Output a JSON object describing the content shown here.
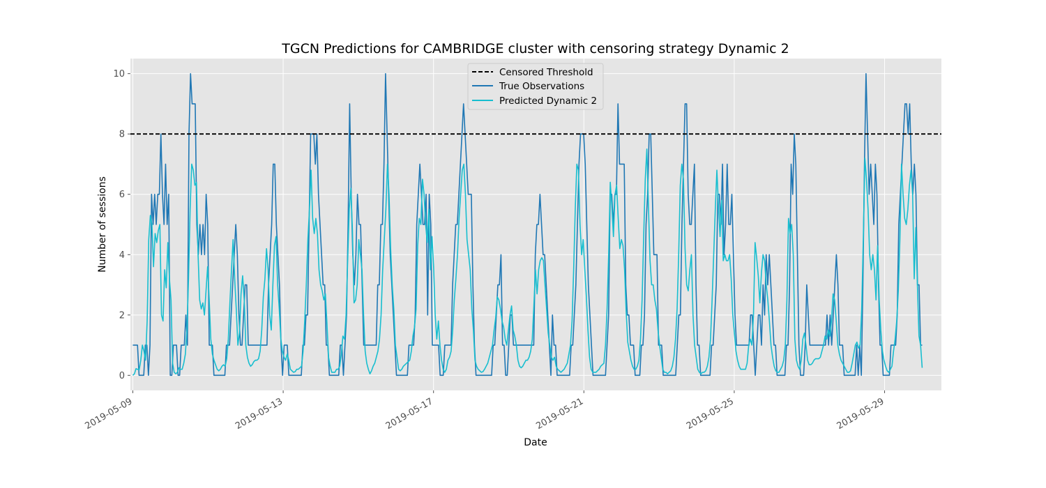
{
  "chart_data": {
    "type": "line",
    "title": "TGCN Predictions for CAMBRIDGE cluster with censoring strategy Dynamic 2",
    "xlabel": "Date",
    "ylabel": "Number of sessions",
    "x_start": "2019-05-09",
    "x_end": "2019-05-30",
    "xlim": [
      "2019-05-09",
      "2019-05-30"
    ],
    "xticks": [
      "2019-05-09",
      "2019-05-13",
      "2019-05-17",
      "2019-05-21",
      "2019-05-25",
      "2019-05-29"
    ],
    "ylim": [
      -0.5,
      10.5
    ],
    "yticks": [
      0,
      2,
      4,
      6,
      8,
      10
    ],
    "grid": true,
    "legend_position": "upper center",
    "censored_threshold": 8,
    "series": [
      {
        "name": "Censored Threshold",
        "color": "#000000",
        "style": "dashed",
        "values": [
          8
        ]
      },
      {
        "name": "True Observations",
        "color": "#1f77b4",
        "style": "solid",
        "values": [
          1,
          1,
          1,
          1,
          0,
          0,
          0,
          0,
          1,
          1,
          0,
          1,
          6,
          5,
          6,
          5,
          6,
          6,
          8,
          6,
          5,
          7,
          5,
          6,
          0,
          0,
          1,
          1,
          1,
          0,
          0,
          1,
          1,
          1,
          2,
          1,
          8,
          10,
          9,
          9,
          9,
          5,
          4,
          5,
          4,
          5,
          4,
          6,
          5,
          1,
          1,
          1,
          0,
          0,
          0,
          0,
          0,
          0,
          0,
          0,
          1,
          1,
          1,
          2,
          3,
          4,
          5,
          4,
          2,
          1,
          1,
          2,
          3,
          3,
          1,
          1,
          1,
          1,
          1,
          1,
          1,
          1,
          1,
          1,
          1,
          1,
          1,
          3,
          4,
          5,
          7,
          7,
          5,
          4,
          3,
          1,
          0,
          1,
          1,
          1,
          0,
          0,
          0,
          0,
          0,
          0,
          0,
          0,
          0,
          1,
          1,
          2,
          2,
          5,
          8,
          8,
          8,
          7,
          8,
          6,
          5,
          4,
          3,
          3,
          1,
          1,
          0,
          0,
          0,
          0,
          0,
          0,
          0,
          1,
          1,
          0,
          1,
          2,
          5,
          9,
          6,
          4,
          3,
          4,
          6,
          5,
          5,
          3,
          1,
          1,
          1,
          1,
          1,
          1,
          1,
          1,
          1,
          3,
          3,
          5,
          5,
          7,
          10,
          8,
          6,
          4,
          3,
          2,
          1,
          0,
          0,
          0,
          0,
          0,
          0,
          0,
          0,
          1,
          1,
          1,
          1,
          2,
          5,
          6,
          7,
          6,
          5,
          5,
          6,
          2,
          6,
          5,
          1,
          1,
          1,
          1,
          1,
          0,
          0,
          0,
          1,
          1,
          1,
          1,
          1,
          3,
          4,
          5,
          5,
          6,
          7,
          8,
          9,
          8,
          7,
          6,
          6,
          6,
          3,
          1,
          0,
          0,
          0,
          0,
          0,
          0,
          0,
          0,
          0,
          0,
          0,
          1,
          1,
          2,
          3,
          3,
          4,
          1,
          1,
          0,
          0,
          1,
          2,
          2,
          1,
          1,
          1,
          1,
          1,
          1,
          1,
          1,
          1,
          1,
          1,
          1,
          1,
          1,
          4,
          5,
          5,
          6,
          5,
          4,
          4,
          3,
          2,
          1,
          0,
          2,
          1,
          1,
          0,
          0,
          0,
          0,
          0,
          0,
          0,
          0,
          0,
          1,
          1,
          2,
          3,
          5,
          7,
          8,
          8,
          8,
          7,
          5,
          3,
          2,
          1,
          0,
          0,
          0,
          0,
          0,
          0,
          0,
          0,
          0,
          1,
          2,
          6,
          6,
          5,
          6,
          6,
          9,
          7,
          7,
          7,
          7,
          3,
          2,
          2,
          1,
          1,
          1,
          0,
          0,
          0,
          0,
          1,
          1,
          2,
          5,
          6,
          8,
          8,
          6,
          4,
          4,
          4,
          1,
          1,
          1,
          0,
          0,
          0,
          0,
          0,
          0,
          0,
          0,
          0,
          1,
          2,
          2,
          5,
          7,
          9,
          9,
          6,
          5,
          5,
          6,
          7,
          3,
          1,
          1,
          0,
          0,
          0,
          0,
          0,
          0,
          0,
          1,
          1,
          2,
          3,
          6,
          6,
          5,
          7,
          4,
          5,
          7,
          5,
          5,
          6,
          4,
          2,
          1,
          1,
          1,
          1,
          1,
          1,
          1,
          1,
          1,
          2,
          2,
          1,
          0,
          1,
          2,
          2,
          1,
          3,
          2,
          4,
          3,
          4,
          3,
          2,
          1,
          1,
          0,
          0,
          0,
          0,
          0,
          0,
          1,
          1,
          3,
          7,
          6,
          8,
          7,
          4,
          1,
          0,
          0,
          0,
          1,
          3,
          2,
          1,
          1,
          1,
          1,
          1,
          1,
          1,
          1,
          1,
          1,
          1,
          2,
          1,
          2,
          1,
          2,
          3,
          4,
          3,
          1,
          1,
          1,
          0,
          0,
          0,
          0,
          0,
          0,
          0,
          0,
          1,
          0,
          1,
          0,
          3,
          7,
          10,
          8,
          6,
          7,
          6,
          5,
          7,
          6,
          3,
          1,
          1,
          0,
          0,
          0,
          0,
          0,
          1,
          1,
          1,
          1,
          2,
          5,
          6,
          7,
          8,
          9,
          9,
          8,
          9,
          7,
          6,
          7,
          6,
          3,
          3,
          1,
          1
        ]
      },
      {
        "name": "Predicted Dynamic 2",
        "color": "#17becf",
        "style": "solid",
        "values": [
          0.0,
          0.05,
          0.22,
          0.2,
          0.18,
          0.5,
          1.0,
          0.8,
          0.5,
          1.8,
          4.5,
          5.3,
          5.0,
          3.6,
          4.7,
          4.4,
          4.8,
          5.0,
          2.0,
          1.8,
          3.5,
          2.9,
          4.4,
          3.2,
          2.5,
          0.4,
          0.1,
          0.05,
          0.1,
          0.25,
          0.2,
          0.2,
          0.4,
          0.7,
          1.5,
          3.2,
          5.5,
          7.0,
          6.8,
          6.3,
          6.4,
          4.0,
          2.5,
          2.2,
          2.4,
          2.0,
          2.8,
          3.6,
          2.5,
          1.2,
          0.7,
          0.5,
          0.35,
          0.2,
          0.15,
          0.2,
          0.3,
          0.35,
          0.3,
          0.55,
          1.2,
          2.4,
          3.5,
          4.5,
          3.2,
          2.2,
          1.0,
          1.4,
          2.7,
          3.3,
          2.5,
          1.0,
          0.6,
          0.4,
          0.3,
          0.35,
          0.45,
          0.5,
          0.5,
          0.55,
          0.8,
          1.5,
          2.6,
          3.2,
          4.2,
          3.5,
          2.0,
          1.5,
          3.0,
          4.3,
          4.6,
          3.0,
          2.2,
          1.2,
          0.8,
          0.6,
          0.5,
          0.7,
          0.5,
          0.2,
          0.15,
          0.1,
          0.12,
          0.2,
          0.2,
          0.25,
          0.3,
          0.8,
          1.8,
          3.0,
          4.5,
          5.5,
          6.8,
          5.2,
          4.7,
          5.2,
          4.7,
          3.5,
          3.0,
          2.8,
          2.5,
          2.7,
          1.7,
          0.6,
          0.3,
          0.1,
          0.1,
          0.1,
          0.2,
          0.2,
          0.3,
          0.7,
          1.3,
          1.2,
          2.0,
          3.8,
          5.5,
          6.2,
          4.8,
          2.4,
          2.5,
          3.0,
          4.5,
          4.0,
          3.5,
          2.0,
          0.8,
          0.4,
          0.2,
          0.05,
          0.15,
          0.3,
          0.4,
          0.6,
          0.8,
          1.2,
          2.0,
          3.5,
          4.5,
          5.5,
          7.0,
          6.0,
          4.2,
          3.0,
          2.2,
          1.0,
          0.6,
          0.2,
          0.15,
          0.2,
          0.3,
          0.35,
          0.4,
          0.45,
          0.5,
          0.8,
          1.3,
          1.6,
          2.2,
          4.3,
          5.2,
          5.0,
          6.5,
          6.0,
          5.0,
          4.4,
          5.5,
          3.5,
          4.6,
          3.6,
          2.0,
          1.2,
          1.8,
          1.0,
          0.5,
          0.2,
          0.1,
          0.2,
          0.5,
          0.6,
          0.8,
          1.5,
          2.5,
          3.2,
          4.0,
          5.2,
          6.0,
          6.8,
          7.0,
          6.0,
          4.5,
          4.0,
          3.5,
          2.2,
          1.5,
          0.5,
          0.3,
          0.2,
          0.15,
          0.1,
          0.12,
          0.2,
          0.3,
          0.4,
          0.6,
          0.8,
          1.0,
          1.5,
          1.9,
          2.6,
          2.5,
          2.2,
          1.8,
          1.6,
          1.2,
          1.0,
          1.5,
          2.0,
          2.3,
          1.5,
          1.3,
          1.0,
          0.5,
          0.3,
          0.25,
          0.3,
          0.4,
          0.5,
          0.5,
          0.6,
          0.8,
          1.2,
          2.3,
          3.5,
          2.7,
          3.5,
          3.8,
          3.9,
          3.8,
          3.0,
          2.2,
          1.4,
          1.0,
          0.6,
          0.5,
          0.6,
          0.3,
          0.2,
          0.15,
          0.1,
          0.15,
          0.2,
          0.3,
          0.4,
          0.7,
          1.0,
          1.8,
          3.5,
          5.5,
          7.0,
          6.8,
          5.0,
          4.0,
          4.5,
          3.5,
          2.6,
          1.5,
          0.6,
          0.2,
          0.1,
          0.1,
          0.1,
          0.15,
          0.2,
          0.3,
          0.35,
          0.4,
          1.0,
          2.2,
          4.0,
          6.4,
          5.6,
          4.6,
          6.0,
          6.3,
          5.2,
          4.2,
          4.5,
          4.3,
          3.5,
          2.1,
          1.1,
          0.8,
          0.5,
          0.3,
          0.2,
          0.2,
          0.3,
          0.5,
          1.2,
          2.5,
          4.6,
          6.5,
          7.5,
          5.6,
          3.8,
          3.0,
          3.0,
          2.5,
          2.2,
          1.5,
          1.0,
          0.6,
          0.2,
          0.1,
          0.1,
          0.05,
          0.1,
          0.15,
          0.3,
          0.6,
          1.2,
          2.2,
          4.0,
          6.3,
          7.0,
          6.5,
          4.2,
          3.0,
          2.8,
          3.5,
          4.0,
          2.0,
          1.0,
          0.6,
          0.2,
          0.1,
          0.05,
          0.1,
          0.1,
          0.15,
          0.3,
          0.6,
          1.2,
          2.5,
          4.0,
          5.5,
          6.8,
          5.6,
          4.6,
          5.8,
          3.8,
          4.0,
          3.8,
          3.8,
          4.0,
          3.2,
          2.0,
          1.4,
          0.8,
          0.5,
          0.3,
          0.2,
          0.2,
          0.2,
          0.2,
          0.4,
          1.0,
          1.2,
          1.0,
          2.0,
          4.4,
          3.9,
          3.3,
          2.4,
          3.4,
          4.0,
          3.8,
          3.0,
          2.5,
          1.8,
          1.0,
          0.6,
          0.3,
          0.15,
          0.1,
          0.1,
          0.2,
          0.3,
          0.5,
          1.0,
          2.5,
          5.2,
          4.7,
          5.0,
          4.0,
          1.2,
          0.5,
          0.3,
          0.2,
          0.5,
          1.2,
          1.4,
          1.0,
          0.5,
          0.35,
          0.35,
          0.4,
          0.5,
          0.55,
          0.55,
          0.55,
          0.6,
          0.8,
          1.0,
          1.3,
          1.2,
          1.5,
          1.3,
          1.8,
          2.7,
          2.5,
          1.8,
          1.0,
          0.7,
          0.5,
          0.4,
          0.3,
          0.2,
          0.1,
          0.1,
          0.15,
          0.4,
          0.7,
          1.0,
          1.1,
          0.9,
          1.0,
          2.2,
          4.5,
          7.2,
          6.5,
          5.5,
          4.0,
          3.5,
          4.0,
          3.5,
          2.5,
          4.3,
          2.5,
          1.5,
          0.8,
          0.5,
          0.3,
          0.15,
          0.1,
          0.2,
          0.3,
          0.8,
          1.2,
          1.8,
          2.8,
          4.5,
          7.0,
          6.0,
          5.2,
          5.0,
          5.5,
          6.3,
          6.8,
          6.0,
          3.2,
          4.9,
          3.0,
          1.3,
          1.0,
          0.25
        ]
      }
    ]
  }
}
